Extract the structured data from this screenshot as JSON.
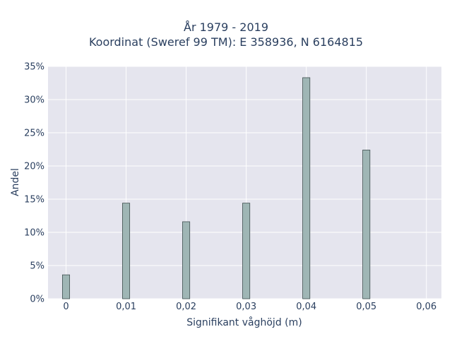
{
  "chart_data": {
    "type": "bar",
    "title_lines": [
      "År 1979 - 2019",
      "Koordinat (Sweref 99 TM): E 358936, N 6164815"
    ],
    "xlabel": "Signifikant våghöjd (m)",
    "ylabel": "Andel",
    "x_ticks": [
      {
        "value": 0,
        "label": "0"
      },
      {
        "value": 0.01,
        "label": "0,01"
      },
      {
        "value": 0.02,
        "label": "0,02"
      },
      {
        "value": 0.03,
        "label": "0,03"
      },
      {
        "value": 0.04,
        "label": "0,04"
      },
      {
        "value": 0.05,
        "label": "0,05"
      },
      {
        "value": 0.06,
        "label": "0,06"
      }
    ],
    "y_ticks": [
      {
        "value": 0,
        "label": "0%"
      },
      {
        "value": 5,
        "label": "5%"
      },
      {
        "value": 10,
        "label": "10%"
      },
      {
        "value": 15,
        "label": "15%"
      },
      {
        "value": 20,
        "label": "20%"
      },
      {
        "value": 25,
        "label": "25%"
      },
      {
        "value": 30,
        "label": "30%"
      },
      {
        "value": 35,
        "label": "35%"
      }
    ],
    "xlim": [
      -0.003,
      0.0625
    ],
    "ylim": [
      0,
      35
    ],
    "bar_width": 0.0012,
    "x": [
      0,
      0.01,
      0.02,
      0.03,
      0.04,
      0.05
    ],
    "values": [
      3.6,
      14.4,
      11.6,
      14.4,
      33.3,
      22.4
    ],
    "grid": true,
    "colors": {
      "plot_bg": "#e5e5ee",
      "grid": "#ffffff",
      "bar_fill": "#9fb6b5",
      "bar_stroke": "#3f4f4f"
    }
  }
}
